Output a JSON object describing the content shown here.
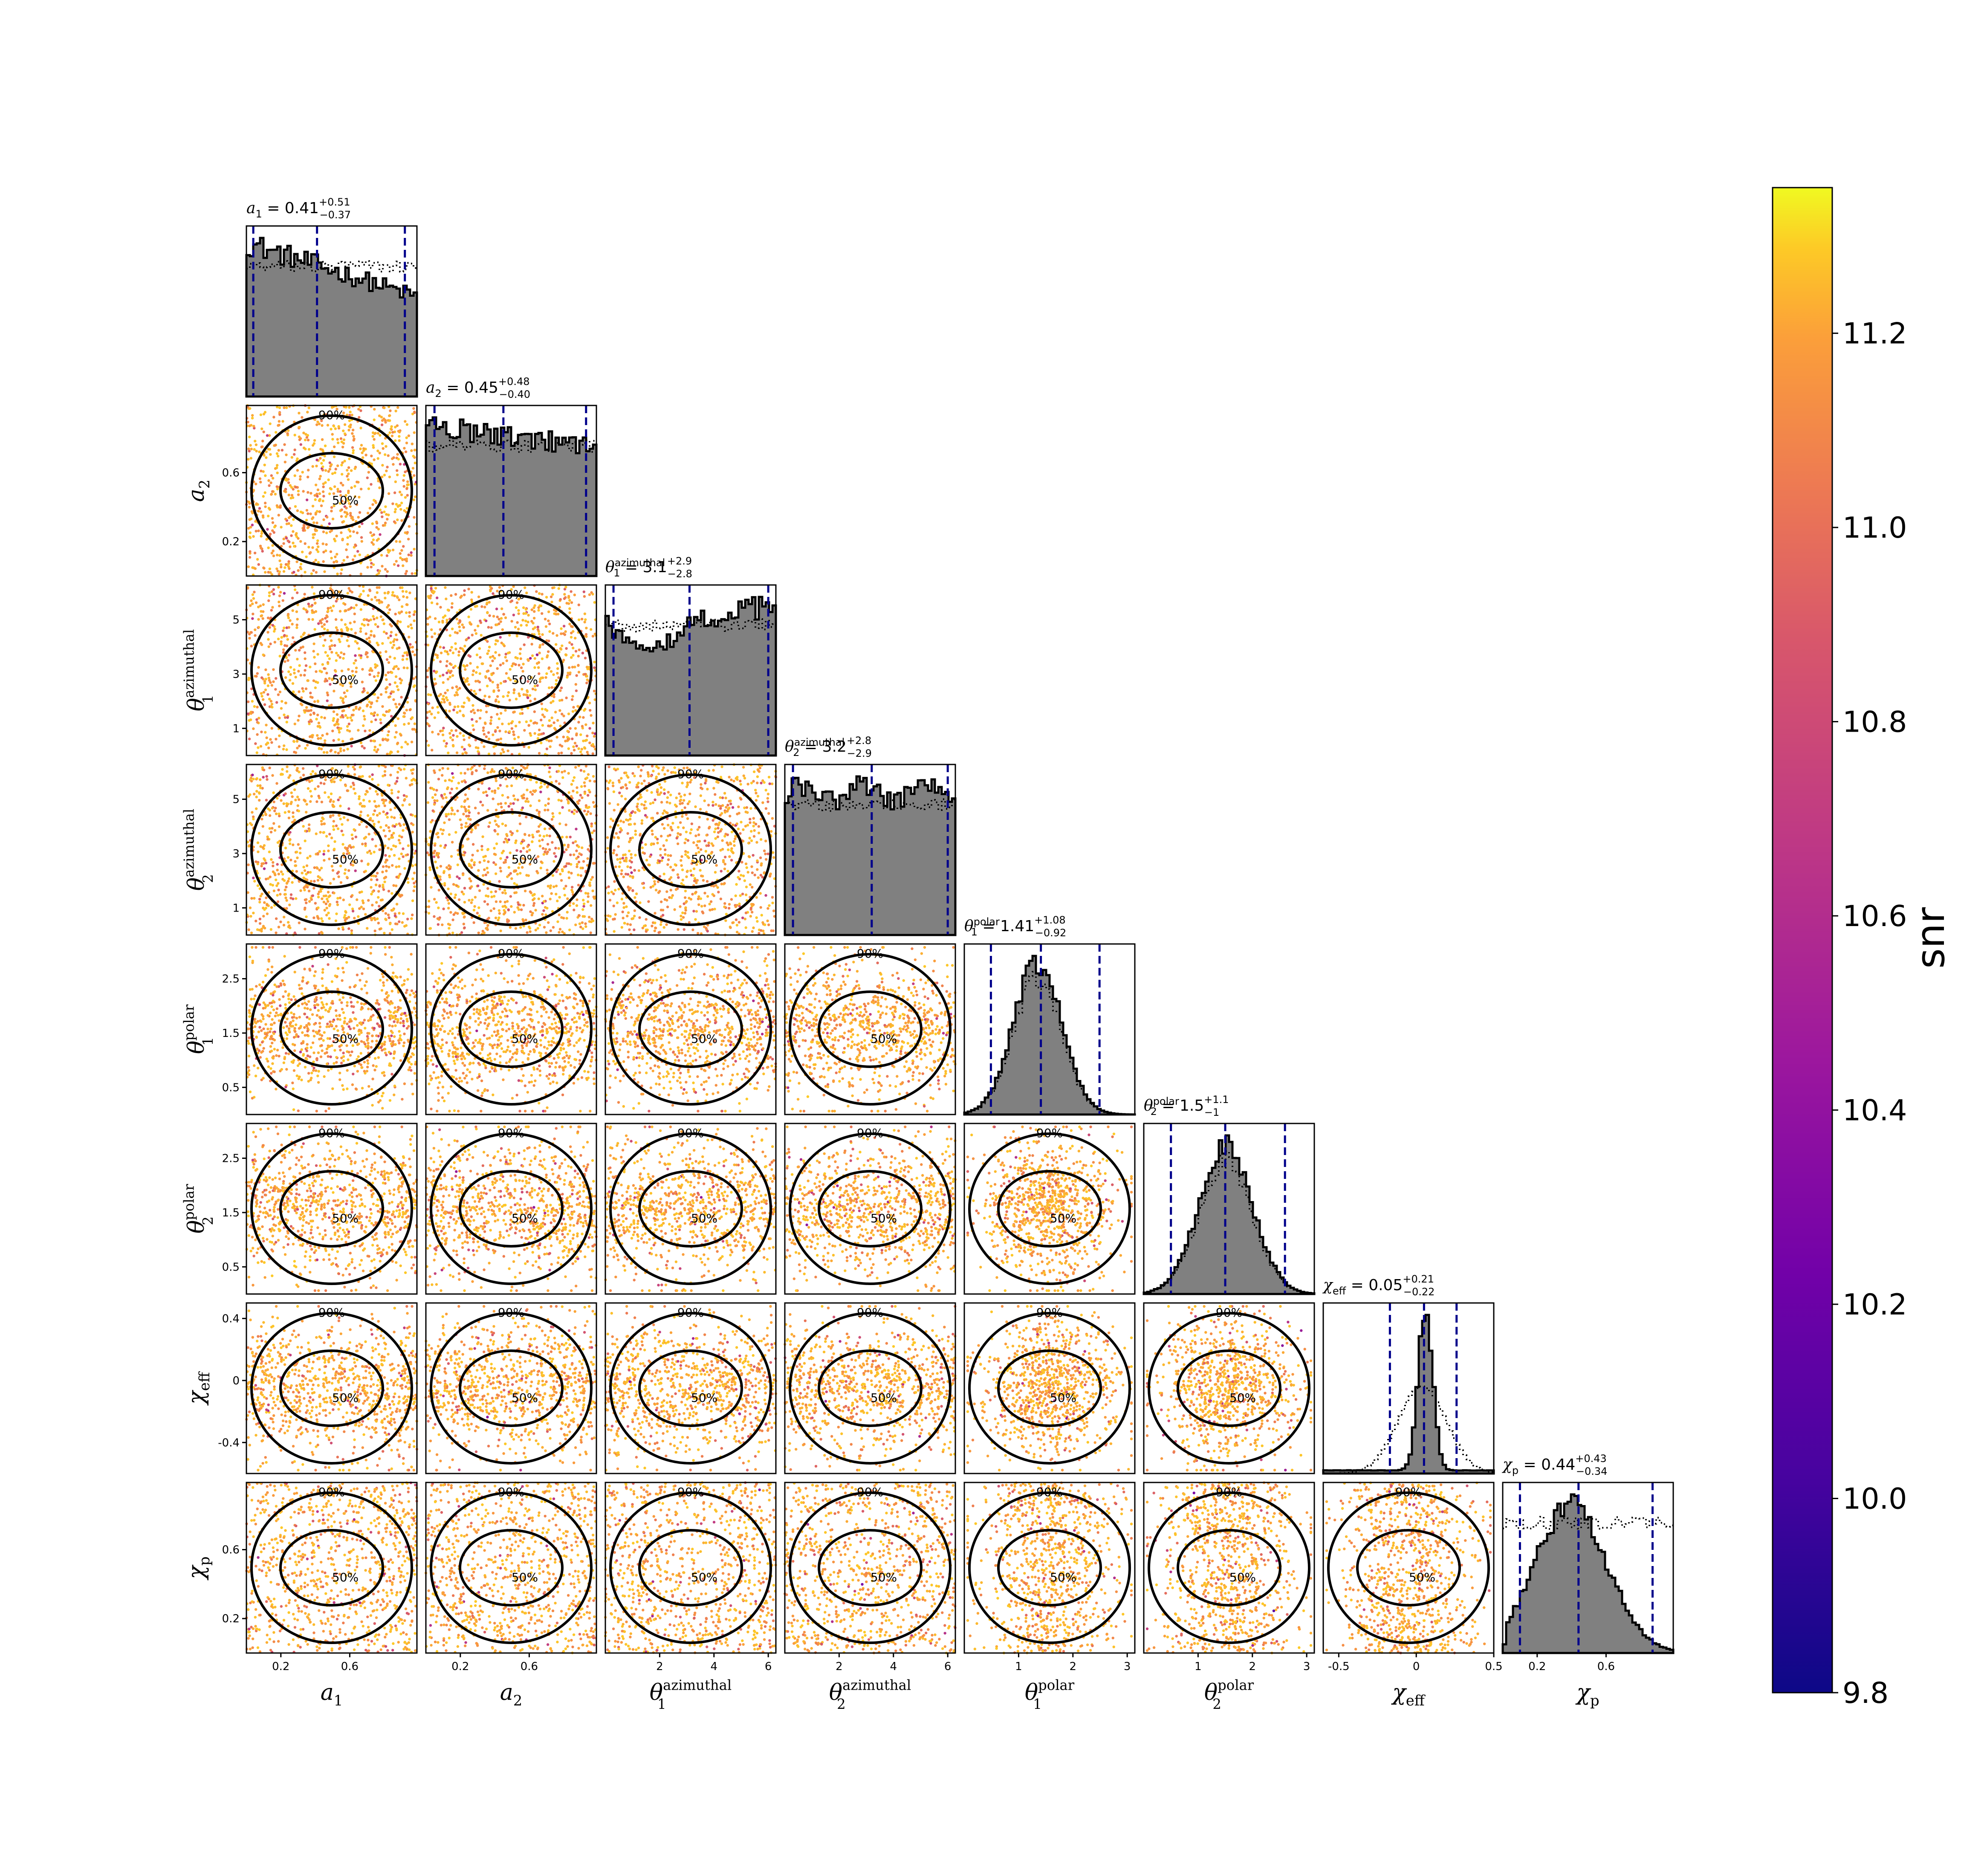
{
  "chart_data": {
    "type": "scatter",
    "title": "",
    "variables": [
      {
        "key": "a1",
        "sym": "a",
        "sub": "1",
        "sup": "",
        "range": [
          0.0,
          0.99
        ],
        "ticks": [
          0.2,
          0.6
        ],
        "median": 0.41,
        "plus": "0.51",
        "minus": "0.37"
      },
      {
        "key": "a2",
        "sym": "a",
        "sub": "2",
        "sup": "",
        "range": [
          0.0,
          0.99
        ],
        "ticks": [
          0.2,
          0.6
        ],
        "median": 0.45,
        "plus": "0.48",
        "minus": "0.40"
      },
      {
        "key": "theta1_az",
        "sym": "θ",
        "sub": "1",
        "sup": "azimuthal",
        "range": [
          0.0,
          6.28
        ],
        "ticks": [
          2,
          4,
          6
        ],
        "yticks": [
          1,
          3,
          5
        ],
        "median": 3.1,
        "plus": "2.9",
        "minus": "2.8"
      },
      {
        "key": "theta2_az",
        "sym": "θ",
        "sub": "2",
        "sup": "azimuthal",
        "range": [
          0.0,
          6.28
        ],
        "ticks": [
          2,
          4,
          6
        ],
        "yticks": [
          1,
          3,
          5
        ],
        "median": 3.2,
        "plus": "2.8",
        "minus": "2.9"
      },
      {
        "key": "theta1_pol",
        "sym": "θ",
        "sub": "1",
        "sup": "polar",
        "range": [
          0.0,
          3.14
        ],
        "ticks": [
          1,
          2,
          3
        ],
        "yticks": [
          0.5,
          1.5,
          2.5
        ],
        "median": 1.41,
        "plus": "1.08",
        "minus": "0.92"
      },
      {
        "key": "theta2_pol",
        "sym": "θ",
        "sub": "2",
        "sup": "polar",
        "range": [
          0.0,
          3.14
        ],
        "ticks": [
          1,
          2,
          3
        ],
        "yticks": [
          0.5,
          1.5,
          2.5
        ],
        "median": 1.5,
        "plus": "1.1",
        "minus": "1"
      },
      {
        "key": "chi_eff",
        "sym": "χ",
        "sub": "eff",
        "sup": "",
        "range": [
          -0.6,
          0.5
        ],
        "ticks": [
          -0.5,
          0.0,
          0.5
        ],
        "yticks": [
          -0.4,
          0.0,
          0.4
        ],
        "median": 0.05,
        "plus": "0.21",
        "minus": "0.22"
      },
      {
        "key": "chi_p",
        "sym": "χ",
        "sub": "p",
        "sup": "",
        "range": [
          0.0,
          0.99
        ],
        "ticks": [
          0.2,
          0.6
        ],
        "yticks": [
          0.2,
          0.6
        ],
        "median": 0.44,
        "plus": "0.43",
        "minus": "0.34"
      }
    ],
    "contour_labels": [
      "50%",
      "90%"
    ],
    "colorbar": {
      "label": "snr",
      "min": 9.8,
      "max": 11.35,
      "ticks": [
        "9.8",
        "10.0",
        "10.2",
        "10.4",
        "10.6",
        "10.8",
        "11.0",
        "11.2"
      ],
      "colormap": "plasma"
    },
    "colors": {
      "hist_fill": "#808080",
      "quantile_line": "#00008b",
      "contour": "#000000",
      "point_main": "#f9b832"
    }
  }
}
